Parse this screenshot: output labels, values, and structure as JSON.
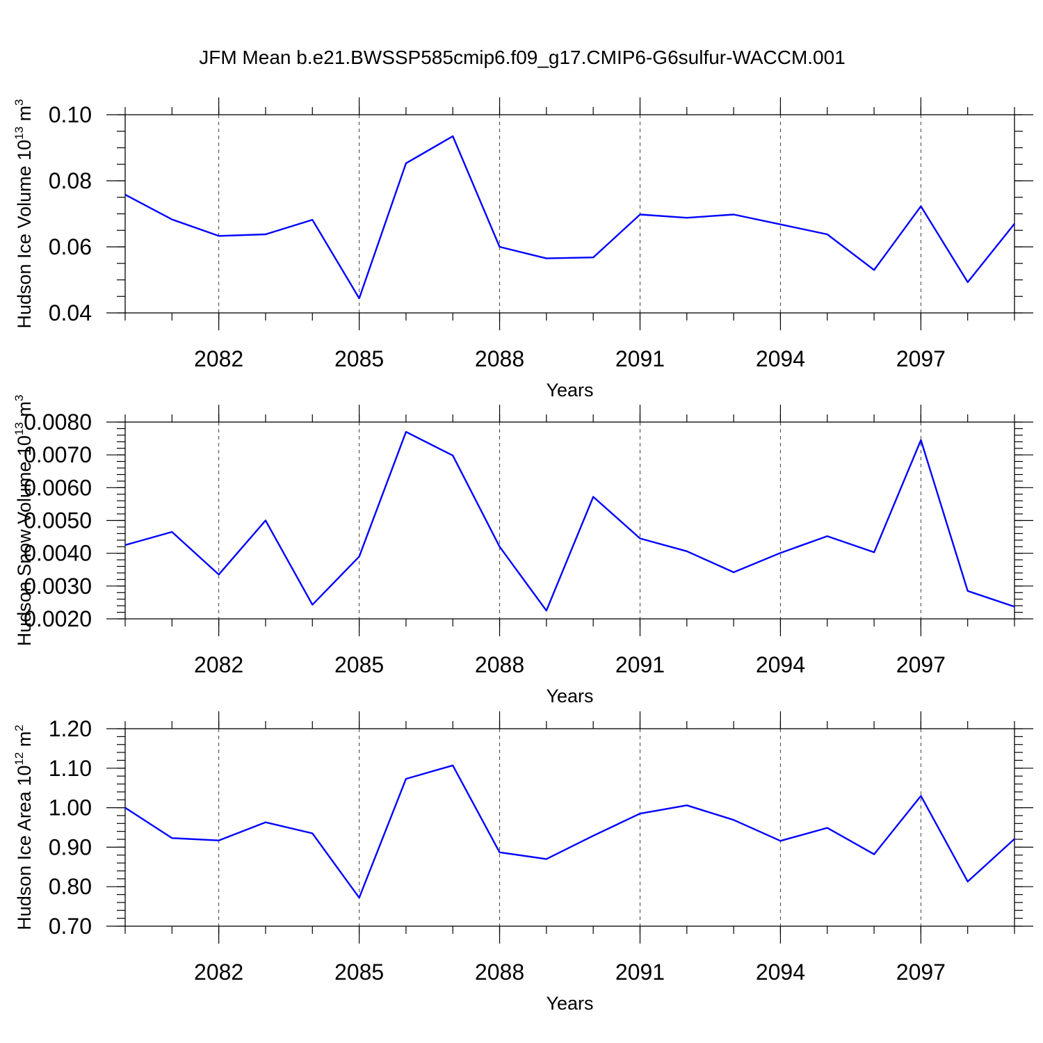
{
  "title": "JFM Mean b.e21.BWSSP585cmip6.f09_g17.CMIP6-G6sulfur-WACCM.001",
  "line_color": "#0000ff",
  "chart_data": [
    {
      "type": "line",
      "title": "JFM Mean b.e21.BWSSP585cmip6.f09_g17.CMIP6-G6sulfur-WACCM.001",
      "xlabel": "Years",
      "ylabel": "Hudson Ice Volume 10",
      "ylabel_exp": "13",
      "ylabel_unit": " m",
      "ylabel_unit_exp": "3",
      "xlim": [
        2080,
        2099
      ],
      "ylim": [
        0.04,
        0.1
      ],
      "x_ticks": [
        2082,
        2085,
        2088,
        2091,
        2094,
        2097
      ],
      "x_tick_labels": [
        "2082",
        "2085",
        "2088",
        "2091",
        "2094",
        "2097"
      ],
      "y_ticks": [
        0.04,
        0.06,
        0.08,
        0.1
      ],
      "y_tick_labels": [
        "0.04",
        "0.06",
        "0.08",
        "0.10"
      ],
      "y_minor_step": 0.005,
      "x": [
        2080,
        2081,
        2082,
        2083,
        2084,
        2085,
        2086,
        2087,
        2088,
        2089,
        2090,
        2091,
        2092,
        2093,
        2094,
        2095,
        2096,
        2097,
        2098,
        2099
      ],
      "series": [
        {
          "name": "Hudson Ice Volume",
          "values": [
            0.0758,
            0.0683,
            0.0633,
            0.0638,
            0.0682,
            0.0444,
            0.0853,
            0.0935,
            0.06,
            0.0565,
            0.0568,
            0.0698,
            0.0688,
            0.0698,
            0.0668,
            0.0638,
            0.053,
            0.0723,
            0.0493,
            0.067
          ]
        }
      ]
    },
    {
      "type": "line",
      "xlabel": "Years",
      "ylabel": "Hudson Snow Volume 10",
      "ylabel_exp": "13",
      "ylabel_unit": " m",
      "ylabel_unit_exp": "3",
      "xlim": [
        2080,
        2099
      ],
      "ylim": [
        0.002,
        0.008
      ],
      "x_ticks": [
        2082,
        2085,
        2088,
        2091,
        2094,
        2097
      ],
      "x_tick_labels": [
        "2082",
        "2085",
        "2088",
        "2091",
        "2094",
        "2097"
      ],
      "y_ticks": [
        0.002,
        0.003,
        0.004,
        0.005,
        0.006,
        0.007,
        0.008
      ],
      "y_tick_labels": [
        "0.0020",
        "0.0030",
        "0.0040",
        "0.0050",
        "0.0060",
        "0.0070",
        "0.0080"
      ],
      "y_minor_step": 0.0002,
      "x": [
        2080,
        2081,
        2082,
        2083,
        2084,
        2085,
        2086,
        2087,
        2088,
        2089,
        2090,
        2091,
        2092,
        2093,
        2094,
        2095,
        2096,
        2097,
        2098,
        2099
      ],
      "series": [
        {
          "name": "Hudson Snow Volume",
          "values": [
            0.00425,
            0.00465,
            0.00335,
            0.005,
            0.00243,
            0.0039,
            0.0077,
            0.00698,
            0.0042,
            0.00225,
            0.00572,
            0.00445,
            0.00406,
            0.00342,
            0.00401,
            0.00452,
            0.00403,
            0.00745,
            0.00285,
            0.00237
          ]
        }
      ]
    },
    {
      "type": "line",
      "xlabel": "Years",
      "ylabel": "Hudson Ice Area 10",
      "ylabel_exp": "12",
      "ylabel_unit": " m",
      "ylabel_unit_exp": "2",
      "xlim": [
        2080,
        2099
      ],
      "ylim": [
        0.7,
        1.2
      ],
      "x_ticks": [
        2082,
        2085,
        2088,
        2091,
        2094,
        2097
      ],
      "x_tick_labels": [
        "2082",
        "2085",
        "2088",
        "2091",
        "2094",
        "2097"
      ],
      "y_ticks": [
        0.7,
        0.8,
        0.9,
        1.0,
        1.1,
        1.2
      ],
      "y_tick_labels": [
        "0.70",
        "0.80",
        "0.90",
        "1.00",
        "1.10",
        "1.20"
      ],
      "y_minor_step": 0.02,
      "x": [
        2080,
        2081,
        2082,
        2083,
        2084,
        2085,
        2086,
        2087,
        2088,
        2089,
        2090,
        2091,
        2092,
        2093,
        2094,
        2095,
        2096,
        2097,
        2098,
        2099
      ],
      "series": [
        {
          "name": "Hudson Ice Area",
          "values": [
            1.0,
            0.923,
            0.917,
            0.963,
            0.935,
            0.772,
            1.073,
            1.107,
            0.887,
            0.87,
            0.929,
            0.985,
            1.006,
            0.969,
            0.916,
            0.949,
            0.882,
            1.03,
            0.813,
            0.921
          ]
        }
      ]
    }
  ]
}
